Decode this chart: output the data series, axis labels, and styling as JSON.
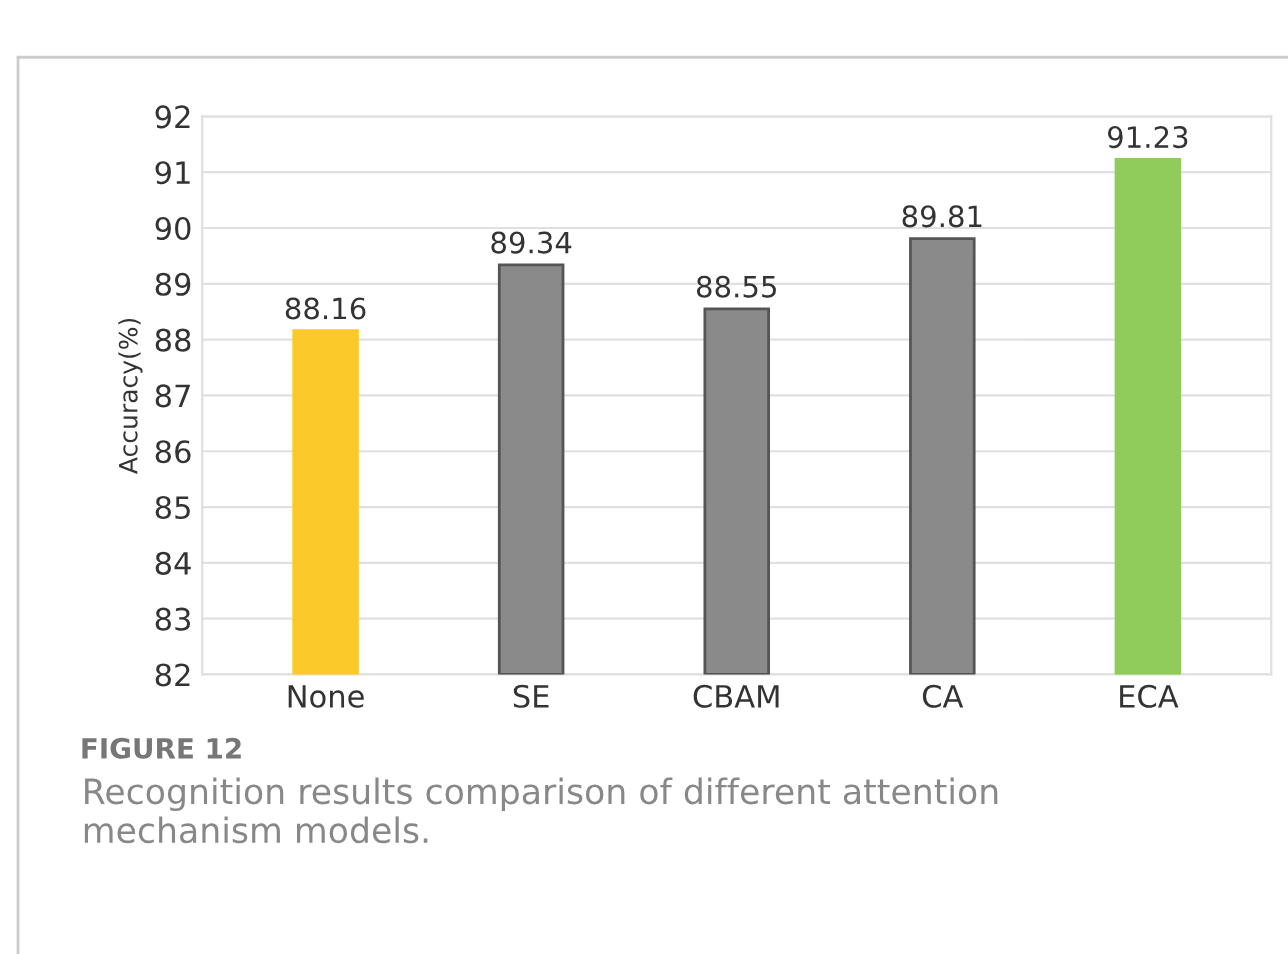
{
  "chart_data": {
    "type": "bar",
    "ylabel": "Accuracy(%)",
    "categories": [
      "None",
      "SE",
      "CBAM",
      "CA",
      "ECA"
    ],
    "values": [
      88.16,
      89.34,
      88.55,
      89.81,
      91.23
    ],
    "colors": [
      "#fcc92a",
      "#8a8a8a",
      "#8a8a8a",
      "#8a8a8a",
      "#8fcc5c"
    ],
    "ylim": [
      82,
      92
    ],
    "yticks": [
      82,
      83,
      84,
      85,
      86,
      87,
      88,
      89,
      90,
      91,
      92
    ],
    "grid": "y",
    "data_labels": true,
    "annotations": [
      "FIGURE 12",
      "Recognition results comparison of different attention mechanism models."
    ]
  }
}
